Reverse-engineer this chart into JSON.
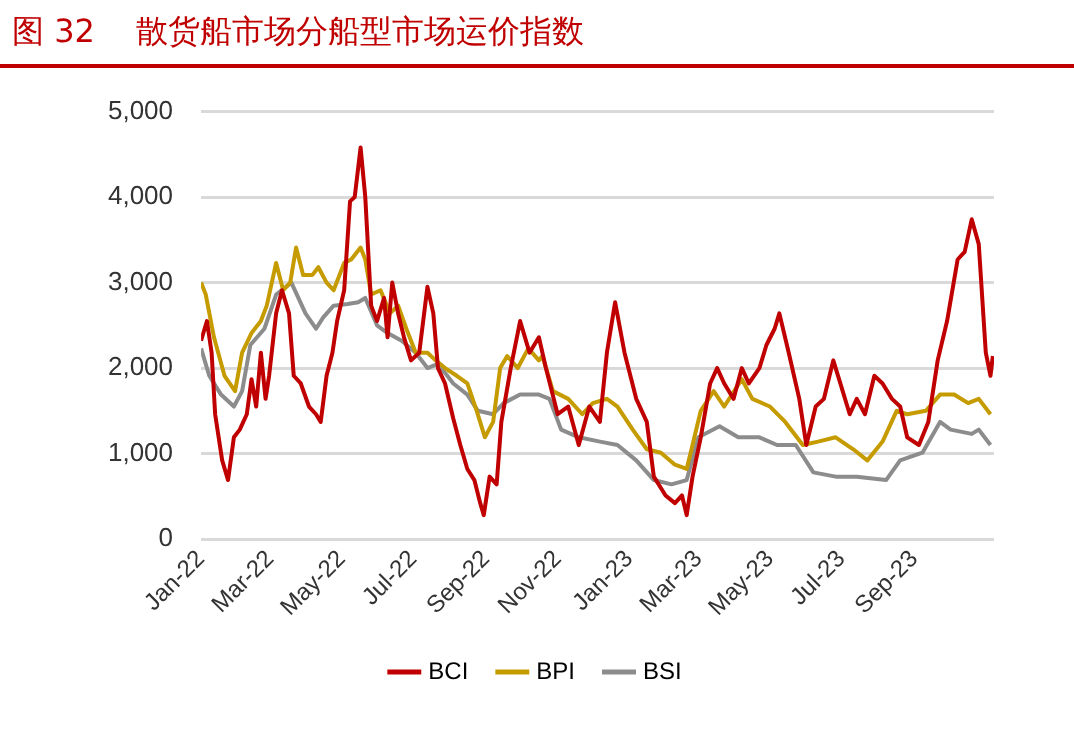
{
  "chart_data": {
    "type": "line",
    "title": "图 32    散货船市场分船型市场运价指数",
    "xlim": [
      "2022-01-01",
      "2023-11-08"
    ],
    "xticks": [
      {
        "value": "2022-01-01",
        "label": "Jan-22"
      },
      {
        "value": "2022-03-01",
        "label": "Mar-22"
      },
      {
        "value": "2022-05-01",
        "label": "May-22"
      },
      {
        "value": "2022-07-01",
        "label": "Jul-22"
      },
      {
        "value": "2022-09-01",
        "label": "Sep-22"
      },
      {
        "value": "2022-11-01",
        "label": "Nov-22"
      },
      {
        "value": "2023-01-01",
        "label": "Jan-23"
      },
      {
        "value": "2023-03-01",
        "label": "Mar-23"
      },
      {
        "value": "2023-05-01",
        "label": "May-23"
      },
      {
        "value": "2023-07-01",
        "label": "Jul-23"
      },
      {
        "value": "2023-09-01",
        "label": "Sep-23"
      }
    ],
    "ylim": [
      0,
      5000
    ],
    "yticks": [
      {
        "value": 0,
        "label": "0"
      },
      {
        "value": 1000,
        "label": "1,000"
      },
      {
        "value": 2000,
        "label": "2,000"
      },
      {
        "value": 3000,
        "label": "3,000"
      },
      {
        "value": 4000,
        "label": "4,000"
      },
      {
        "value": 5000,
        "label": "5,000"
      }
    ],
    "grid": "y",
    "legend": "bottom",
    "marker": "none",
    "line_style": "solid",
    "series": [
      {
        "name": "BCI",
        "color": "#c00000",
        "x": [
          "2022-01-01",
          "2022-01-06",
          "2022-01-10",
          "2022-01-13",
          "2022-01-19",
          "2022-01-24",
          "2022-01-29",
          "2022-02-03",
          "2022-02-09",
          "2022-02-13",
          "2022-02-17",
          "2022-02-21",
          "2022-02-25",
          "2022-02-28",
          "2022-03-06",
          "2022-03-11",
          "2022-03-17",
          "2022-03-21",
          "2022-03-27",
          "2022-04-03",
          "2022-04-09",
          "2022-04-13",
          "2022-04-18",
          "2022-04-23",
          "2022-04-27",
          "2022-05-03",
          "2022-05-08",
          "2022-05-12",
          "2022-05-17",
          "2022-05-21",
          "2022-05-26",
          "2022-05-31",
          "2022-06-06",
          "2022-06-09",
          "2022-06-13",
          "2022-06-18",
          "2022-06-23",
          "2022-06-29",
          "2022-07-06",
          "2022-07-13",
          "2022-07-18",
          "2022-07-22",
          "2022-07-28",
          "2022-08-04",
          "2022-08-10",
          "2022-08-16",
          "2022-08-22",
          "2022-08-27",
          "2022-08-30",
          "2022-09-04",
          "2022-09-10",
          "2022-09-14",
          "2022-09-22",
          "2022-09-30",
          "2022-10-08",
          "2022-10-16",
          "2022-10-22",
          "2022-11-01",
          "2022-11-10",
          "2022-11-19",
          "2022-11-28",
          "2022-12-07",
          "2022-12-13",
          "2022-12-20",
          "2022-12-28",
          "2023-01-07",
          "2023-01-16",
          "2023-01-22",
          "2023-02-01",
          "2023-02-09",
          "2023-02-15",
          "2023-02-19",
          "2023-02-24",
          "2023-03-03",
          "2023-03-11",
          "2023-03-17",
          "2023-03-23",
          "2023-03-31",
          "2023-04-07",
          "2023-04-13",
          "2023-04-22",
          "2023-04-28",
          "2023-05-05",
          "2023-05-09",
          "2023-05-17",
          "2023-05-26",
          "2023-06-01",
          "2023-06-09",
          "2023-06-16",
          "2023-06-24",
          "2023-06-30",
          "2023-07-08",
          "2023-07-14",
          "2023-07-21",
          "2023-07-29",
          "2023-08-05",
          "2023-08-13",
          "2023-08-20",
          "2023-08-26",
          "2023-09-05",
          "2023-09-13",
          "2023-09-21",
          "2023-09-29",
          "2023-10-08",
          "2023-10-14",
          "2023-10-20",
          "2023-10-26",
          "2023-11-01",
          "2023-11-05",
          "2023-11-07"
        ],
        "values": [
          2320,
          2550,
          2180,
          1460,
          920,
          690,
          1190,
          1280,
          1460,
          1870,
          1550,
          2180,
          1640,
          1910,
          2640,
          2910,
          2640,
          1910,
          1820,
          1550,
          1460,
          1370,
          1910,
          2180,
          2550,
          2910,
          3950,
          4000,
          4580,
          4000,
          2730,
          2550,
          2820,
          2360,
          3000,
          2640,
          2360,
          2090,
          2180,
          2950,
          2640,
          2000,
          1820,
          1410,
          1100,
          820,
          690,
          420,
          280,
          730,
          640,
          1370,
          2000,
          2550,
          2180,
          2360,
          2000,
          1460,
          1550,
          1100,
          1550,
          1370,
          2180,
          2770,
          2180,
          1640,
          1370,
          730,
          510,
          420,
          510,
          280,
          730,
          1190,
          1820,
          2000,
          1820,
          1640,
          2000,
          1820,
          2000,
          2270,
          2460,
          2640,
          2180,
          1640,
          1100,
          1550,
          1640,
          2090,
          1820,
          1460,
          1640,
          1460,
          1910,
          1820,
          1640,
          1550,
          1190,
          1100,
          1370,
          2090,
          2550,
          3270,
          3360,
          3740,
          3450,
          2180,
          1910,
          2140
        ]
      },
      {
        "name": "BPI",
        "color": "#c59b00",
        "x": [
          "2022-01-01",
          "2022-01-05",
          "2022-01-12",
          "2022-01-21",
          "2022-01-30",
          "2022-02-05",
          "2022-02-13",
          "2022-02-21",
          "2022-02-26",
          "2022-03-06",
          "2022-03-12",
          "2022-03-18",
          "2022-03-23",
          "2022-03-29",
          "2022-04-06",
          "2022-04-11",
          "2022-04-18",
          "2022-04-24",
          "2022-05-03",
          "2022-05-09",
          "2022-05-17",
          "2022-05-21",
          "2022-05-26",
          "2022-06-03",
          "2022-06-11",
          "2022-06-18",
          "2022-06-25",
          "2022-07-03",
          "2022-07-13",
          "2022-07-20",
          "2022-07-28",
          "2022-08-07",
          "2022-08-16",
          "2022-08-24",
          "2022-08-31",
          "2022-09-07",
          "2022-09-13",
          "2022-09-19",
          "2022-09-28",
          "2022-10-07",
          "2022-10-16",
          "2022-10-19",
          "2022-10-28",
          "2022-11-10",
          "2022-11-22",
          "2022-12-01",
          "2022-12-13",
          "2022-12-22",
          "2023-01-04",
          "2023-01-16",
          "2023-01-28",
          "2023-02-09",
          "2023-02-19",
          "2023-02-24",
          "2023-03-03",
          "2023-03-14",
          "2023-03-23",
          "2023-04-07",
          "2023-04-16",
          "2023-05-01",
          "2023-05-14",
          "2023-05-29",
          "2023-06-11",
          "2023-06-26",
          "2023-07-11",
          "2023-07-23",
          "2023-08-05",
          "2023-08-17",
          "2023-08-26",
          "2023-09-11",
          "2023-09-23",
          "2023-10-05",
          "2023-10-17",
          "2023-10-26",
          "2023-11-05"
        ],
        "values": [
          3000,
          2860,
          2360,
          1910,
          1730,
          2180,
          2410,
          2550,
          2730,
          3230,
          2910,
          3000,
          3410,
          3090,
          3090,
          3180,
          3000,
          2910,
          3230,
          3270,
          3410,
          3270,
          2860,
          2910,
          2640,
          2730,
          2460,
          2180,
          2180,
          2090,
          2000,
          1910,
          1820,
          1500,
          1190,
          1370,
          2000,
          2140,
          2000,
          2230,
          2090,
          2140,
          1730,
          1640,
          1460,
          1590,
          1640,
          1550,
          1280,
          1050,
          1010,
          870,
          820,
          1100,
          1500,
          1730,
          1550,
          1870,
          1640,
          1550,
          1370,
          1100,
          1140,
          1190,
          1050,
          920,
          1140,
          1500,
          1460,
          1500,
          1690,
          1690,
          1590,
          1640,
          1460
        ]
      },
      {
        "name": "BSI",
        "color": "#8c8c8c",
        "x": [
          "2022-01-01",
          "2022-01-08",
          "2022-01-18",
          "2022-01-29",
          "2022-02-05",
          "2022-02-12",
          "2022-02-24",
          "2022-03-06",
          "2022-03-19",
          "2022-03-31",
          "2022-04-09",
          "2022-04-15",
          "2022-04-24",
          "2022-05-06",
          "2022-05-15",
          "2022-05-21",
          "2022-05-31",
          "2022-06-09",
          "2022-06-21",
          "2022-07-03",
          "2022-07-13",
          "2022-07-22",
          "2022-08-04",
          "2022-08-16",
          "2022-08-25",
          "2022-09-07",
          "2022-09-16",
          "2022-09-30",
          "2022-10-16",
          "2022-10-25",
          "2022-11-04",
          "2022-11-19",
          "2022-12-07",
          "2022-12-22",
          "2023-01-07",
          "2023-01-22",
          "2023-02-06",
          "2023-02-19",
          "2023-03-01",
          "2023-03-19",
          "2023-04-04",
          "2023-04-22",
          "2023-05-07",
          "2023-05-23",
          "2023-06-07",
          "2023-06-26",
          "2023-07-14",
          "2023-08-08",
          "2023-08-20",
          "2023-09-08",
          "2023-09-23",
          "2023-10-02",
          "2023-10-20",
          "2023-10-26",
          "2023-11-05"
        ],
        "values": [
          2230,
          1910,
          1690,
          1550,
          1730,
          2270,
          2460,
          2860,
          3000,
          2640,
          2460,
          2590,
          2730,
          2750,
          2770,
          2820,
          2500,
          2410,
          2320,
          2180,
          2000,
          2050,
          1820,
          1690,
          1500,
          1460,
          1590,
          1690,
          1690,
          1640,
          1280,
          1190,
          1140,
          1100,
          920,
          690,
          640,
          690,
          1190,
          1320,
          1190,
          1190,
          1100,
          1100,
          780,
          730,
          730,
          690,
          920,
          1010,
          1370,
          1280,
          1230,
          1280,
          1100
        ]
      }
    ]
  }
}
